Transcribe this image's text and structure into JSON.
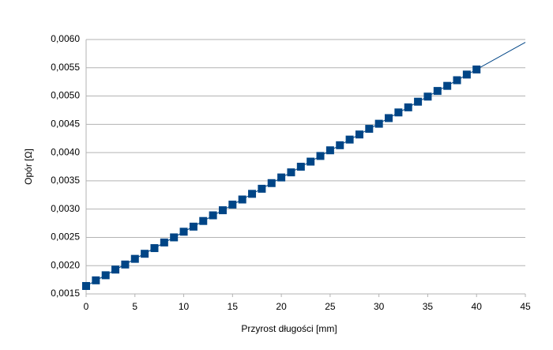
{
  "chart_data": {
    "type": "scatter",
    "xlabel": "Przyrost długości [mm]",
    "ylabel": "Opór [Ω]",
    "series": [
      {
        "name": null,
        "color": "#004586",
        "x": [
          0,
          1,
          2,
          3,
          4,
          5,
          6,
          7,
          8,
          9,
          10,
          11,
          12,
          13,
          14,
          15,
          16,
          17,
          18,
          19,
          20,
          21,
          22,
          23,
          24,
          25,
          26,
          27,
          28,
          29,
          30,
          31,
          32,
          33,
          34,
          35,
          36,
          37,
          38,
          39,
          40
        ],
        "values": [
          0.00164,
          0.00174,
          0.00183,
          0.00193,
          0.00202,
          0.00212,
          0.00221,
          0.00231,
          0.00241,
          0.0025,
          0.0026,
          0.00269,
          0.00279,
          0.00289,
          0.00298,
          0.00308,
          0.00317,
          0.00327,
          0.00336,
          0.00346,
          0.00356,
          0.00365,
          0.00375,
          0.00384,
          0.00394,
          0.00404,
          0.00413,
          0.00423,
          0.00432,
          0.00442,
          0.00451,
          0.00461,
          0.00471,
          0.0048,
          0.0049,
          0.00499,
          0.00509,
          0.00518,
          0.00528,
          0.00538,
          0.00547
        ]
      }
    ],
    "trendline": {
      "color": "#004586",
      "x": [
        0,
        45
      ],
      "values": [
        0.00164,
        0.00595
      ]
    },
    "xlim": [
      0,
      45
    ],
    "xticks": [
      0,
      5,
      10,
      15,
      20,
      25,
      30,
      35,
      40,
      45
    ],
    "ylim": [
      0.0015,
      0.006
    ],
    "yticks": [
      {
        "value": 0.0015,
        "label": "0,0015"
      },
      {
        "value": 0.002,
        "label": "0,0020"
      },
      {
        "value": 0.0025,
        "label": "0,0025"
      },
      {
        "value": 0.003,
        "label": "0,0030"
      },
      {
        "value": 0.0035,
        "label": "0,0035"
      },
      {
        "value": 0.004,
        "label": "0,0040"
      },
      {
        "value": 0.0045,
        "label": "0,0045"
      },
      {
        "value": 0.005,
        "label": "0,0050"
      },
      {
        "value": 0.0055,
        "label": "0,0055"
      },
      {
        "value": 0.006,
        "label": "0,0060"
      }
    ],
    "grid": true
  }
}
